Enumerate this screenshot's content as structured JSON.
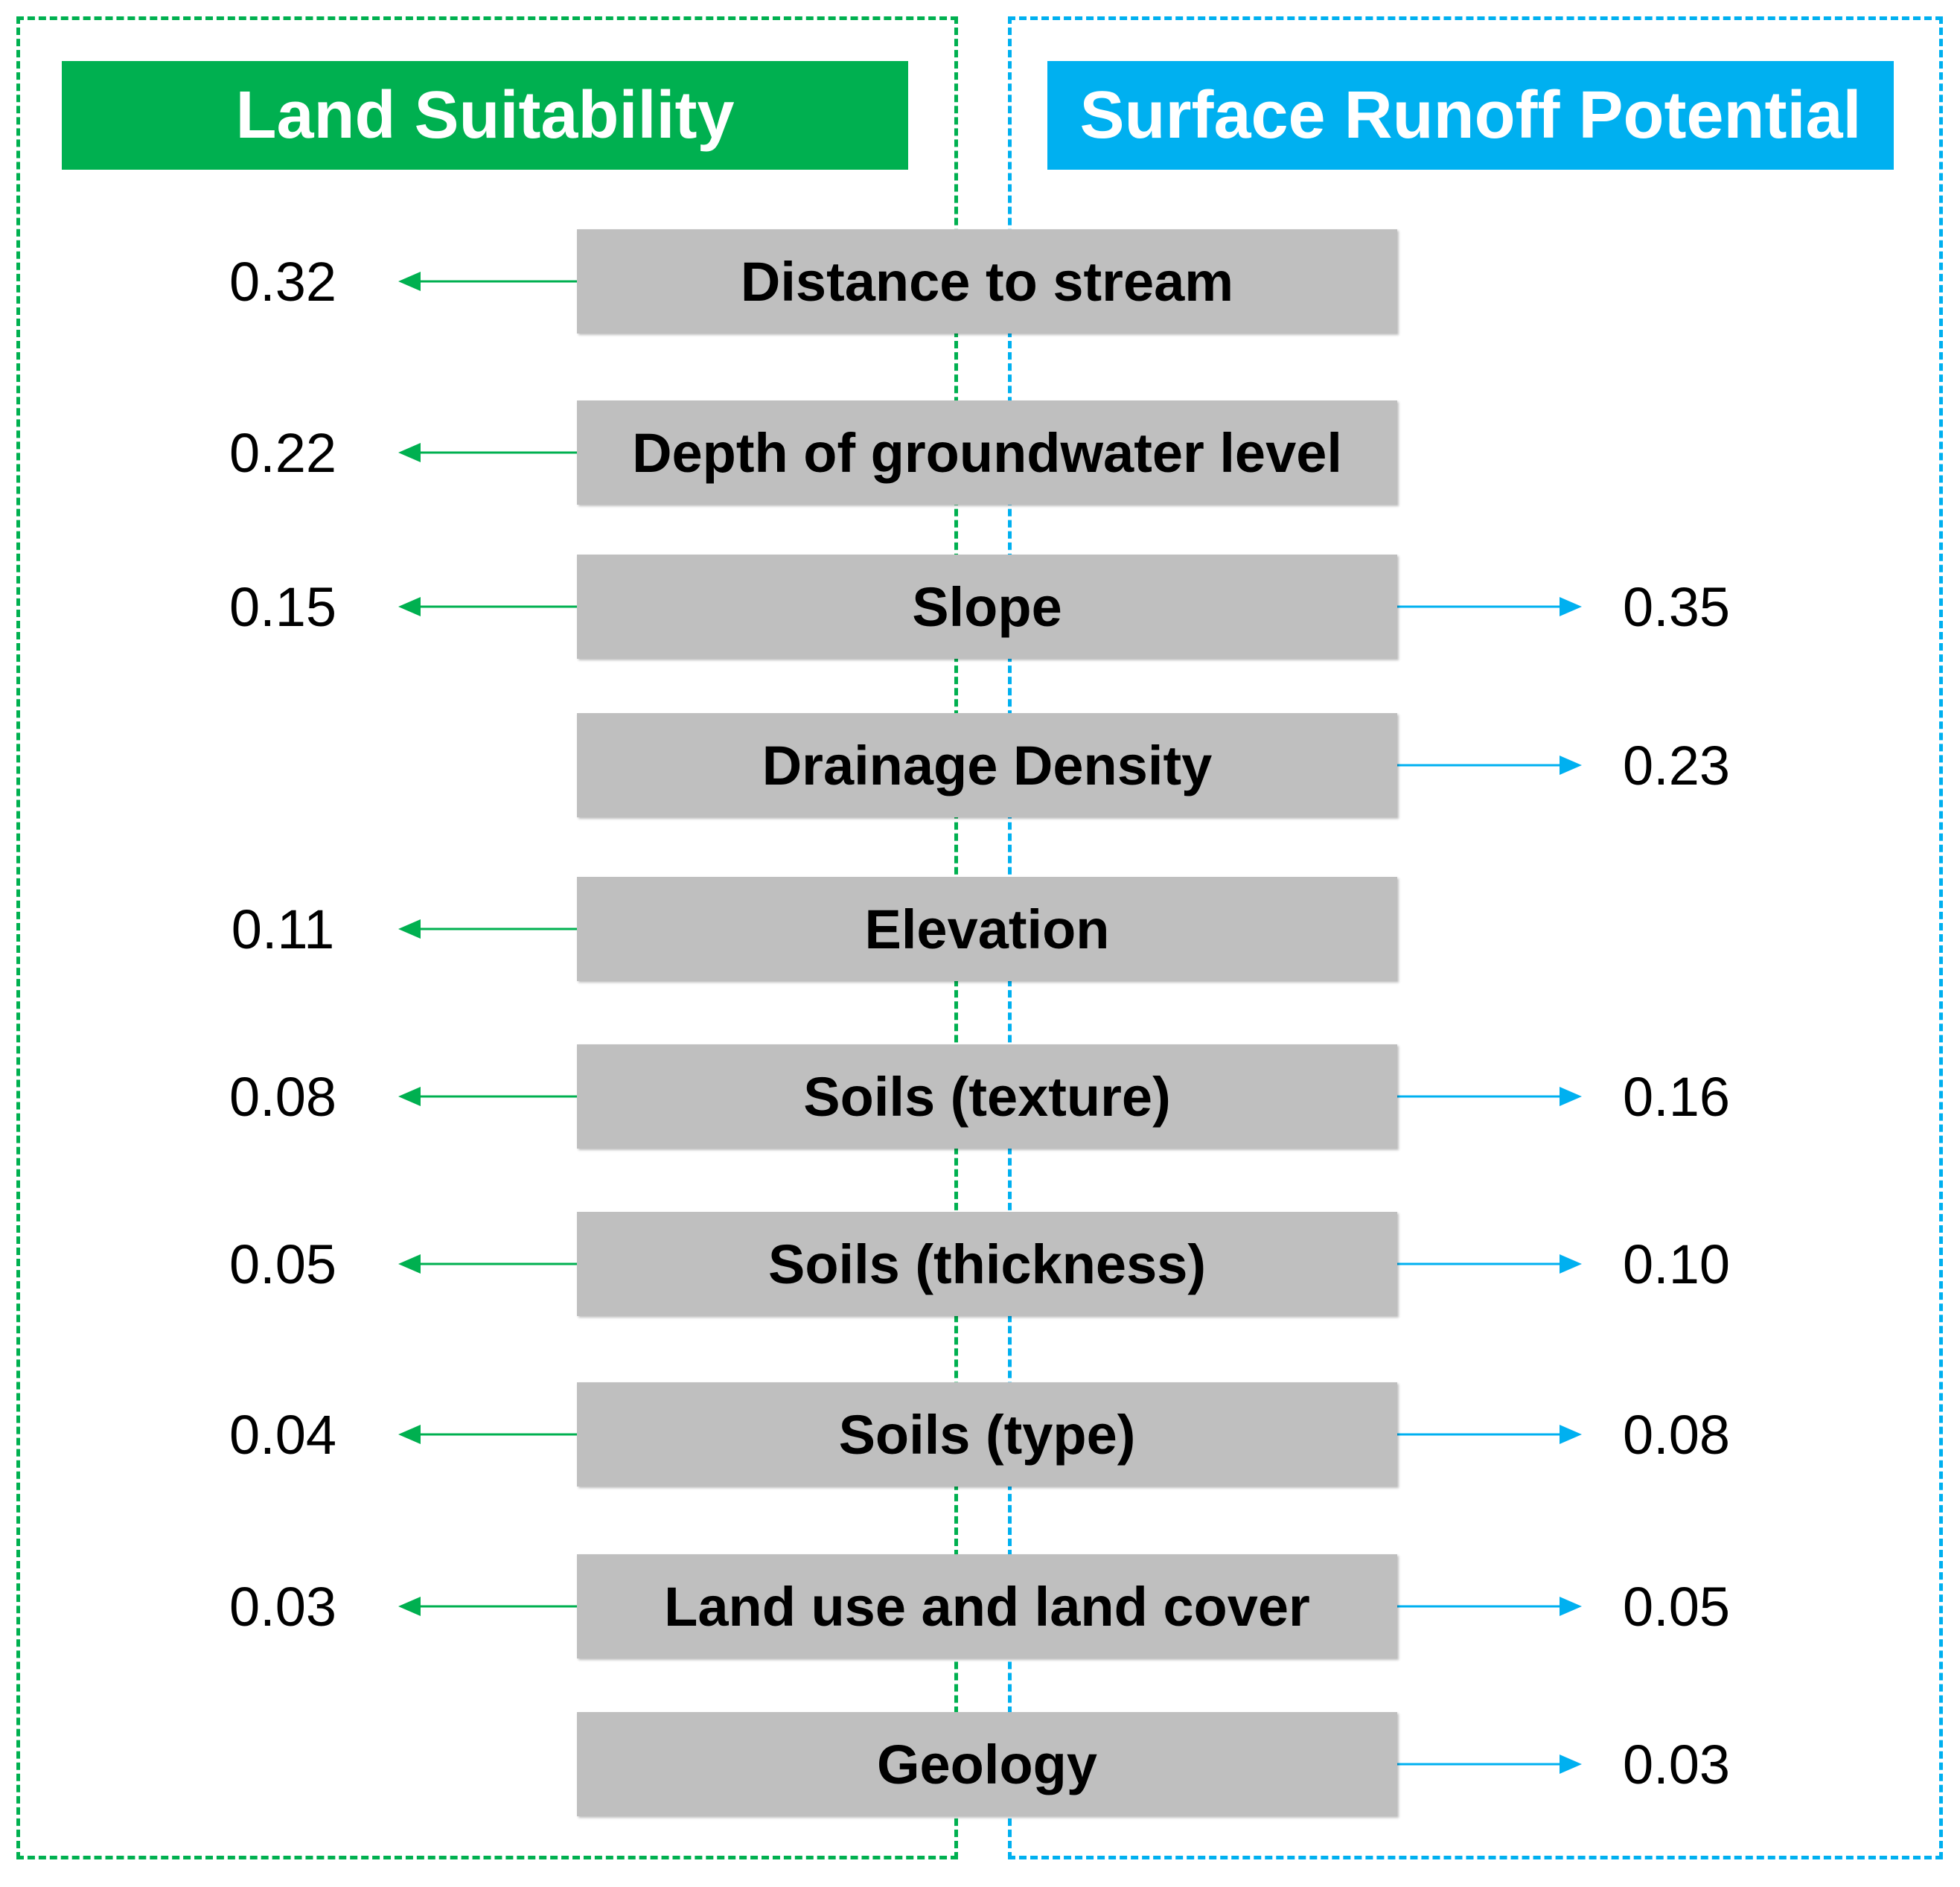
{
  "headers": {
    "left": "Land Suitability",
    "right": "Surface Runoff Potential"
  },
  "colors": {
    "land_suitability": "#00b050",
    "surface_runoff": "#00b0f0",
    "factor_box": "#bfbfbf"
  },
  "factors": [
    {
      "label": "Distance to stream",
      "land_suitability": "0.32",
      "runoff": null
    },
    {
      "label": "Depth of groundwater level",
      "land_suitability": "0.22",
      "runoff": null
    },
    {
      "label": "Slope",
      "land_suitability": "0.15",
      "runoff": "0.35"
    },
    {
      "label": "Drainage Density",
      "land_suitability": null,
      "runoff": "0.23"
    },
    {
      "label": "Elevation",
      "land_suitability": "0.11",
      "runoff": null
    },
    {
      "label": "Soils (texture)",
      "land_suitability": "0.08",
      "runoff": "0.16"
    },
    {
      "label": "Soils (thickness)",
      "land_suitability": "0.05",
      "runoff": "0.10"
    },
    {
      "label": "Soils (type)",
      "land_suitability": "0.04",
      "runoff": "0.08"
    },
    {
      "label": "Land use and land cover",
      "land_suitability": "0.03",
      "runoff": "0.05"
    },
    {
      "label": "Geology",
      "land_suitability": null,
      "runoff": "0.03"
    }
  ]
}
